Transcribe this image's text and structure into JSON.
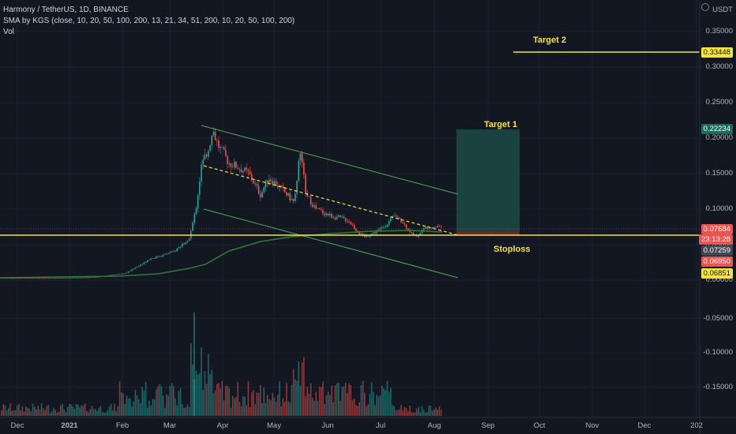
{
  "legend": {
    "title": "Harmony / TetherUS, 1D, BINANCE",
    "sma": "SMA by KGS (close, 10, 20, 50, 100, 200, 13, 21, 34, 51, 200, 10, 20, 50, 100, 200)",
    "vol": "Vol"
  },
  "currency": "USDT",
  "annotations": {
    "target2": "Target 2",
    "target1": "Target 1",
    "stoploss": "Stoploss"
  },
  "price_labels": {
    "target2": "0.33448",
    "target1": "0.22234",
    "current": "0.07684",
    "countdown": "23:13:28",
    "level_a": "0.07259",
    "level_b": "0.06950",
    "level_c": "0.06851"
  },
  "y_axis_ticks": [
    "0.35000",
    "0.30000",
    "0.25000",
    "0.20000",
    "0.15000",
    "0.10000",
    "0.05000",
    "0.00000",
    "-0.05000",
    "-0.10000",
    "-0.15000"
  ],
  "x_axis_ticks": [
    "Dec",
    "2021",
    "Feb",
    "Mar",
    "Apr",
    "May",
    "Jun",
    "Jul",
    "Aug",
    "Sep",
    "Oct",
    "Nov",
    "Dec",
    "202"
  ],
  "colors": {
    "background": "#131722",
    "up": "#26a69a",
    "down": "#ef5350",
    "channel": "#4caf50",
    "sma": "#2e7d32",
    "yellow": "#f5e43d",
    "target_box": "#1b4a47"
  },
  "icons": [
    "settings-icon"
  ]
}
